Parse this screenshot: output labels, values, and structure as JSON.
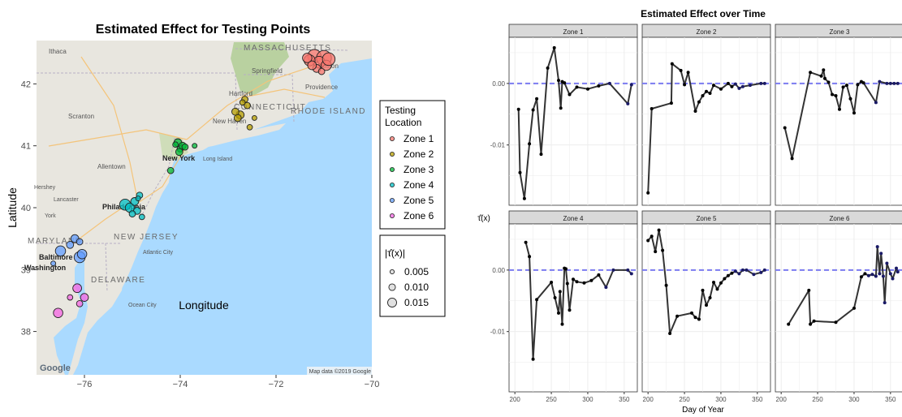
{
  "colors": {
    "zone_1": "#f8766d",
    "zone_2": "#b79f00",
    "zone_3": "#00ba38",
    "zone_4": "#00bfc4",
    "zone_5": "#619cff",
    "zone_6": "#f564e3",
    "line": "#333333",
    "refline": "#7b7bf0",
    "panel_bg": "#ffffff",
    "strip_bg": "#d9d9d9",
    "grid": "#ebebeb",
    "water": "#aadaff",
    "land": "#e8e6df",
    "park": "#a9c98b"
  },
  "map_labels": {
    "states": [
      "MASSACHUSETTS",
      "CONNECTICUT",
      "RHODE ISLAND",
      "NEW JERSEY",
      "DELAWARE",
      "MARYLAND"
    ],
    "cities": [
      "Ithaca",
      "Springfield",
      "Providence",
      "Boston",
      "Hartford",
      "New Haven",
      "Scranton",
      "Allentown",
      "New York",
      "Long Island",
      "Hershey",
      "Lancaster",
      "York",
      "Philadelphia",
      "Baltimore",
      "Washington",
      "Atlantic City",
      "Ocean City"
    ],
    "attribution": "Map data ©2019 Google",
    "brand": "Google"
  },
  "chart_data": [
    {
      "type": "scatter",
      "title": "Estimated Effect for Testing Points",
      "xlabel": "Longitude",
      "ylabel": "Latitude",
      "xlim": [
        -77.0,
        -70.0
      ],
      "ylim": [
        37.3,
        42.7
      ],
      "xticks": [
        -76,
        -74,
        -72,
        -70
      ],
      "xtick_labels": [
        "−76",
        "−74",
        "−72",
        "−70"
      ],
      "yticks": [
        38,
        39,
        40,
        41,
        42
      ],
      "legend_color": {
        "title": "Testing Location",
        "items": [
          "Zone  1",
          "Zone  2",
          "Zone  3",
          "Zone  4",
          "Zone  5",
          "Zone  6"
        ]
      },
      "legend_size": {
        "title": "|τ̂(x)|",
        "items": [
          {
            "label": "0.005",
            "value": 0.005
          },
          {
            "label": "0.010",
            "value": 0.01
          },
          {
            "label": "0.015",
            "value": 0.015
          }
        ]
      },
      "series": [
        {
          "zone": 1,
          "points": [
            [
              -71.2,
              42.45,
              0.013
            ],
            [
              -71.0,
              42.42,
              0.015
            ],
            [
              -71.1,
              42.35,
              0.011
            ],
            [
              -70.95,
              42.3,
              0.009
            ],
            [
              -71.3,
              42.38,
              0.01
            ],
            [
              -71.15,
              42.25,
              0.006
            ],
            [
              -71.05,
              42.2,
              0.004
            ],
            [
              -71.25,
              42.3,
              0.007
            ],
            [
              -70.9,
              42.4,
              0.012
            ],
            [
              -71.35,
              42.42,
              0.008
            ]
          ]
        },
        {
          "zone": 2,
          "points": [
            [
              -72.65,
              41.75,
              0.004
            ],
            [
              -72.7,
              41.7,
              0.003
            ],
            [
              -72.75,
              41.5,
              0.006
            ],
            [
              -72.8,
              41.45,
              0.005
            ],
            [
              -72.6,
              41.65,
              0.004
            ],
            [
              -72.55,
              41.3,
              0.003
            ],
            [
              -72.45,
              41.45,
              0.002
            ],
            [
              -72.85,
              41.55,
              0.005
            ]
          ]
        },
        {
          "zone": 3,
          "points": [
            [
              -74.05,
              41.05,
              0.006
            ],
            [
              -74.0,
              40.95,
              0.004
            ],
            [
              -73.95,
              41.0,
              0.005
            ],
            [
              -74.1,
              41.02,
              0.003
            ],
            [
              -73.9,
              40.98,
              0.004
            ],
            [
              -74.02,
              40.9,
              0.005
            ],
            [
              -74.2,
              40.6,
              0.004
            ],
            [
              -73.7,
              41.0,
              0.002
            ]
          ]
        },
        {
          "zone": 4,
          "points": [
            [
              -75.15,
              40.05,
              0.01
            ],
            [
              -75.05,
              40.0,
              0.008
            ],
            [
              -74.95,
              40.1,
              0.006
            ],
            [
              -74.85,
              40.2,
              0.004
            ],
            [
              -74.9,
              39.95,
              0.005
            ],
            [
              -74.8,
              39.85,
              0.003
            ],
            [
              -75.0,
              39.9,
              0.004
            ],
            [
              -74.88,
              40.15,
              0.002
            ]
          ]
        },
        {
          "zone": 5,
          "points": [
            [
              -76.5,
              39.3,
              0.009
            ],
            [
              -76.1,
              39.2,
              0.01
            ],
            [
              -76.05,
              39.25,
              0.008
            ],
            [
              -76.2,
              39.5,
              0.006
            ],
            [
              -76.3,
              39.4,
              0.005
            ],
            [
              -76.1,
              39.45,
              0.004
            ],
            [
              -76.65,
              39.1,
              0.002
            ]
          ]
        },
        {
          "zone": 6,
          "points": [
            [
              -76.15,
              38.7,
              0.007
            ],
            [
              -76.0,
              38.55,
              0.006
            ],
            [
              -76.1,
              38.45,
              0.004
            ],
            [
              -76.55,
              38.3,
              0.008
            ],
            [
              -76.3,
              38.55,
              0.003
            ]
          ]
        }
      ]
    },
    {
      "type": "line",
      "title": "Estimated Effect over Time",
      "xlabel": "Day of Year",
      "ylabel": "τ̂(x)",
      "xlim": [
        192,
        368
      ],
      "ylim": [
        -0.0198,
        0.0075
      ],
      "xticks": [
        200,
        250,
        300,
        350
      ],
      "yticks": [
        0.0,
        -0.01
      ],
      "ytick_labels": [
        "0.00",
        "-0.01"
      ],
      "reference_y": 0.0,
      "panels": [
        {
          "name": "Zone  1",
          "x": [
            205,
            207,
            213,
            220,
            225,
            230,
            236,
            245,
            254,
            260,
            263,
            265,
            268,
            275,
            285,
            300,
            315,
            330,
            355,
            360
          ],
          "y": [
            -0.0042,
            -0.0145,
            -0.0187,
            -0.0098,
            -0.0043,
            -0.0025,
            -0.0115,
            0.0025,
            0.0058,
            0.0005,
            -0.004,
            0.0003,
            0.0001,
            -0.0018,
            -0.0006,
            -0.0009,
            -0.0004,
            0.0,
            -0.0033,
            -0.0002
          ]
        },
        {
          "name": "Zone  2",
          "x": [
            200,
            205,
            232,
            233,
            245,
            250,
            255,
            265,
            270,
            275,
            280,
            285,
            290,
            300,
            310,
            315,
            320,
            325,
            330,
            340,
            355,
            360
          ],
          "y": [
            -0.0178,
            -0.0041,
            -0.0032,
            0.0032,
            0.0021,
            -0.0002,
            0.0018,
            -0.0045,
            -0.003,
            -0.002,
            -0.0013,
            -0.0016,
            -0.0003,
            -0.0009,
            0.0,
            -0.0005,
            -0.0001,
            -0.0008,
            -0.0005,
            -0.0003,
            0.0,
            0.0
          ]
        },
        {
          "name": "Zone  3",
          "x": [
            205,
            215,
            240,
            255,
            258,
            260,
            265,
            270,
            275,
            280,
            285,
            290,
            295,
            300,
            305,
            310,
            313,
            330,
            335,
            345,
            350,
            355,
            360
          ],
          "y": [
            -0.0072,
            -0.0122,
            0.0018,
            0.0012,
            0.0022,
            0.0008,
            0.0002,
            -0.0018,
            -0.002,
            -0.0042,
            -0.0006,
            -0.0003,
            -0.0025,
            -0.0048,
            -0.0002,
            0.0003,
            0.0001,
            -0.0031,
            0.0003,
            0.0,
            0.0,
            0.0,
            0.0
          ]
        },
        {
          "name": "Zone  4",
          "x": [
            215,
            220,
            225,
            230,
            250,
            255,
            260,
            262,
            265,
            268,
            270,
            272,
            275,
            280,
            285,
            295,
            305,
            315,
            325,
            335,
            355,
            360
          ],
          "y": [
            0.0045,
            0.0022,
            -0.0145,
            -0.0048,
            -0.002,
            -0.0045,
            -0.007,
            -0.0035,
            -0.0088,
            0.0003,
            0.0002,
            -0.0022,
            -0.0065,
            -0.0015,
            -0.0019,
            -0.0021,
            -0.0017,
            -0.0008,
            -0.0028,
            0.0,
            0.0,
            -0.0006
          ]
        },
        {
          "name": "Zone  5",
          "x": [
            200,
            205,
            210,
            215,
            220,
            225,
            230,
            240,
            260,
            265,
            270,
            275,
            280,
            285,
            290,
            295,
            300,
            305,
            310,
            315,
            320,
            325,
            330,
            335,
            345,
            355,
            360
          ],
          "y": [
            0.0048,
            0.0055,
            0.003,
            0.0065,
            0.0032,
            -0.0025,
            -0.0103,
            -0.0075,
            -0.007,
            -0.0077,
            -0.008,
            -0.0033,
            -0.0057,
            -0.0045,
            -0.002,
            -0.0031,
            -0.0021,
            -0.0014,
            -0.0009,
            -0.0005,
            -0.0002,
            -0.0006,
            0.0,
            0.0,
            -0.0007,
            -0.0004,
            0.0
          ]
        },
        {
          "name": "Zone  6",
          "x": [
            210,
            238,
            240,
            245,
            275,
            300,
            310,
            315,
            320,
            325,
            330,
            332,
            335,
            337,
            340,
            342,
            345,
            350,
            353,
            358,
            360
          ],
          "y": [
            -0.0088,
            -0.0033,
            -0.0088,
            -0.0083,
            -0.0085,
            -0.0062,
            -0.0011,
            -0.0006,
            -0.0009,
            -0.0007,
            -0.001,
            0.0038,
            -0.0006,
            0.0027,
            -0.001,
            -0.0053,
            0.0011,
            -0.0006,
            -0.0014,
            0.0003,
            -0.0003
          ]
        }
      ]
    }
  ]
}
